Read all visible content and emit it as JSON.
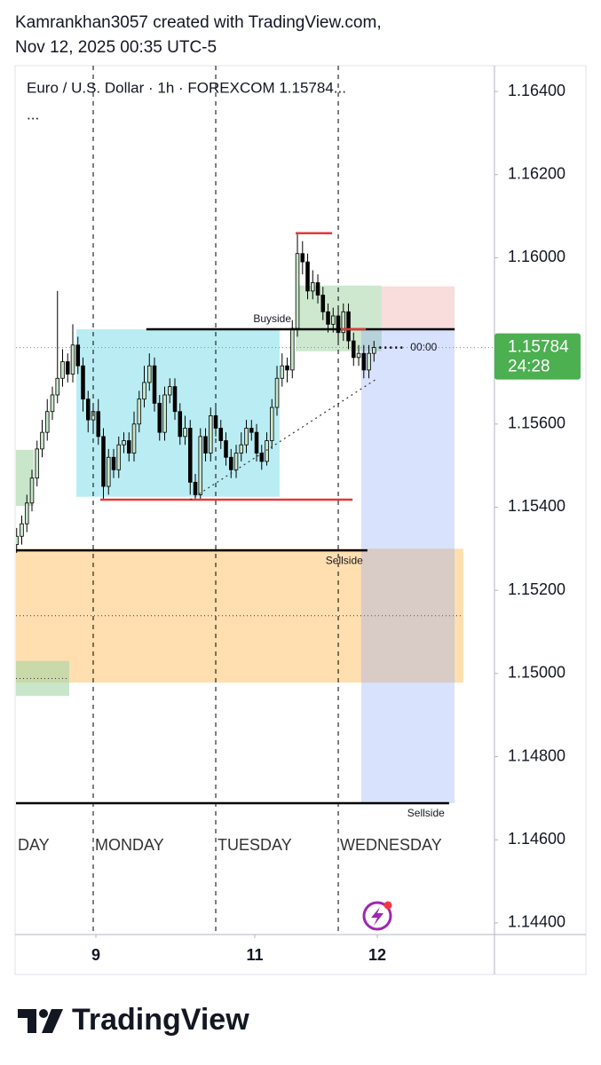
{
  "header": {
    "line1": "Kamrankhan3057 created with TradingView.com,",
    "line2": "Nov 12, 2025 00:35 UTC-5"
  },
  "chart_data": {
    "type": "candlestick",
    "legend_text": "Euro / U.S. Dollar · 1h · FOREXCOM  1.15784...",
    "legend_more": "...",
    "x": [
      -15,
      -14,
      -13,
      -12,
      -11,
      -10,
      -9,
      -8,
      -7,
      -6,
      -5,
      -4,
      -3,
      -2,
      -1,
      0,
      1,
      2,
      3,
      4,
      5,
      6,
      7,
      8,
      9,
      10,
      11,
      12,
      13,
      14,
      15,
      16,
      17,
      18,
      19,
      20,
      21,
      22,
      23,
      24,
      25,
      26,
      27,
      28,
      29,
      30,
      31,
      32,
      33,
      34,
      35,
      36,
      37,
      38,
      39,
      40,
      41,
      42,
      43,
      44,
      45,
      46,
      47,
      48,
      49,
      50,
      51,
      52,
      53,
      54,
      55
    ],
    "open": [
      1.1531,
      1.1533,
      1.1536,
      1.1541,
      1.1547,
      1.1554,
      1.1558,
      1.1563,
      1.1567,
      1.1571,
      1.1575,
      1.1572,
      1.1579,
      1.1574,
      1.1566,
      1.1561,
      1.1563,
      1.1557,
      1.1545,
      1.1552,
      1.1549,
      1.1555,
      1.1556,
      1.1553,
      1.156,
      1.1566,
      1.157,
      1.1574,
      1.1565,
      1.1558,
      1.1567,
      1.1569,
      1.1563,
      1.1557,
      1.1559,
      1.1546,
      1.1543,
      1.1557,
      1.1553,
      1.1562,
      1.1559,
      1.1556,
      1.1552,
      1.1549,
      1.1553,
      1.1555,
      1.1559,
      1.1558,
      1.1553,
      1.1551,
      1.1556,
      1.1564,
      1.1571,
      1.1574,
      1.1573,
      1.1583,
      1.1601,
      1.1599,
      1.1592,
      1.1594,
      1.1591,
      1.1587,
      1.1584,
      1.1586,
      1.1582,
      1.1587,
      1.158,
      1.1576,
      1.1577,
      1.1573,
      1.1577
    ],
    "high": [
      1.1535,
      1.1538,
      1.1543,
      1.1549,
      1.1556,
      1.1561,
      1.1566,
      1.1569,
      1.1592,
      1.1578,
      1.1577,
      1.1584,
      1.1581,
      1.1576,
      1.1568,
      1.1565,
      1.1566,
      1.1559,
      1.1554,
      1.1554,
      1.1557,
      1.1558,
      1.1558,
      1.1563,
      1.1568,
      1.1574,
      1.1577,
      1.1576,
      1.1567,
      1.1569,
      1.1571,
      1.1571,
      1.1565,
      1.1562,
      1.1561,
      1.1548,
      1.1559,
      1.1559,
      1.1564,
      1.1564,
      1.1561,
      1.1558,
      1.1554,
      1.1555,
      1.1558,
      1.1561,
      1.1561,
      1.156,
      1.1555,
      1.1558,
      1.1566,
      1.1574,
      1.1577,
      1.1576,
      1.1585,
      1.1606,
      1.1604,
      1.1601,
      1.1597,
      1.1596,
      1.1593,
      1.1589,
      1.1588,
      1.1588,
      1.1589,
      1.1589,
      1.1582,
      1.1579,
      1.1579,
      1.1579,
      1.158
    ],
    "low": [
      1.1529,
      1.1531,
      1.1534,
      1.1539,
      1.1545,
      1.1552,
      1.1556,
      1.1561,
      1.1565,
      1.1569,
      1.157,
      1.157,
      1.1572,
      1.1563,
      1.1558,
      1.1558,
      1.1555,
      1.1542,
      1.1543,
      1.1547,
      1.1547,
      1.1553,
      1.1551,
      1.1551,
      1.1558,
      1.1564,
      1.1568,
      1.1563,
      1.1556,
      1.1556,
      1.1565,
      1.1561,
      1.1555,
      1.1555,
      1.1543,
      1.1542,
      1.1542,
      1.1551,
      1.1551,
      1.1557,
      1.1554,
      1.155,
      1.1547,
      1.1547,
      1.1551,
      1.1553,
      1.1556,
      1.1551,
      1.1549,
      1.155,
      1.1554,
      1.1562,
      1.1569,
      1.157,
      1.1571,
      1.1581,
      1.1596,
      1.159,
      1.159,
      1.1589,
      1.1585,
      1.1582,
      1.1582,
      1.158,
      1.158,
      1.1578,
      1.1574,
      1.1574,
      1.1571,
      1.1571,
      1.1575
    ],
    "close": [
      1.1533,
      1.1536,
      1.1541,
      1.1547,
      1.1554,
      1.1558,
      1.1563,
      1.1567,
      1.1571,
      1.1575,
      1.1572,
      1.1579,
      1.1574,
      1.1566,
      1.1561,
      1.1563,
      1.1557,
      1.1545,
      1.1552,
      1.1549,
      1.1555,
      1.1556,
      1.1553,
      1.156,
      1.1566,
      1.157,
      1.1574,
      1.1565,
      1.1558,
      1.1567,
      1.1569,
      1.1563,
      1.1557,
      1.1559,
      1.1546,
      1.1543,
      1.1557,
      1.1553,
      1.1562,
      1.1559,
      1.1556,
      1.1552,
      1.1549,
      1.1553,
      1.1555,
      1.1559,
      1.1558,
      1.1553,
      1.1551,
      1.1556,
      1.1564,
      1.1571,
      1.1574,
      1.1573,
      1.1583,
      1.1601,
      1.1599,
      1.1592,
      1.1594,
      1.1591,
      1.1587,
      1.1584,
      1.1586,
      1.1582,
      1.1587,
      1.158,
      1.1576,
      1.1577,
      1.1573,
      1.1577,
      1.15784
    ],
    "up_color": "#c8e6c9",
    "down_color": "#000000",
    "xlim": [
      -15.13,
      78.6
    ],
    "xticks": [
      {
        "value": 0.52,
        "label": "9"
      },
      {
        "value": 31.65,
        "label": "11"
      },
      {
        "value": 55.65,
        "label": "12"
      }
    ],
    "ylim": [
      1.14372,
      1.16462
    ],
    "yticks": [
      {
        "value": 1.164,
        "label": "1.16400"
      },
      {
        "value": 1.162,
        "label": "1.16200"
      },
      {
        "value": 1.16,
        "label": "1.16000"
      },
      {
        "value": 1.158,
        "label": "1.15800"
      },
      {
        "value": 1.156,
        "label": "1.15600"
      },
      {
        "value": 1.154,
        "label": "1.15400"
      },
      {
        "value": 1.152,
        "label": "1.15200"
      },
      {
        "value": 1.15,
        "label": "1.15000"
      },
      {
        "value": 1.148,
        "label": "1.14800"
      },
      {
        "value": 1.146,
        "label": "1.14600"
      },
      {
        "value": 1.144,
        "label": "1.14400"
      }
    ],
    "grid": false,
    "session_breaks": [
      0,
      24,
      48
    ],
    "day_labels": [
      {
        "x": -15.13,
        "label": "DAY"
      },
      {
        "x": 0,
        "label": "MONDAY"
      },
      {
        "x": 24,
        "label": "TUESDAY"
      },
      {
        "x": 48,
        "label": "WEDNESDAY"
      }
    ],
    "zones": [
      {
        "x": [
          -3.3,
          36.5
        ],
        "y": [
          1.15425,
          1.15828
        ],
        "color": "rgba(128,222,234,0.55)",
        "midline": false
      },
      {
        "x": [
          -15.13,
          72.5
        ],
        "y": [
          1.14978,
          1.153
        ],
        "color": "rgba(255,183,77,0.45)",
        "midline": true
      },
      {
        "x": [
          -15.13,
          -11.65
        ],
        "y": [
          1.15403,
          1.15538
        ],
        "color": "rgba(165,214,167,0.6)",
        "midline": false
      },
      {
        "x": [
          -15.13,
          -4.7
        ],
        "y": [
          1.14946,
          1.1503
        ],
        "color": "rgba(165,214,167,0.6)",
        "midline": true
      },
      {
        "x": [
          39.65,
          56.5
        ],
        "y": [
          1.15775,
          1.15933
        ],
        "color": "rgba(165,214,167,0.55)",
        "midline": false
      },
      {
        "x": [
          56.5,
          70.8
        ],
        "y": [
          1.15828,
          1.15931
        ],
        "color": "rgba(239,154,154,0.35)",
        "midline": false
      },
      {
        "x": [
          52.5,
          70.8
        ],
        "y": [
          1.14688,
          1.15828
        ],
        "color": "rgba(130,160,250,0.3)",
        "midline": false
      }
    ],
    "levels": [
      {
        "x": [
          10.4,
          39.65
        ],
        "y": [
          1.15828,
          1.15828
        ],
        "color": "#000000",
        "dash": "solid",
        "label": "Buyside",
        "label_pos": "above"
      },
      {
        "x": [
          39.65,
          70.8
        ],
        "y": [
          1.15828,
          1.15828
        ],
        "color": "#000000",
        "dash": "solid"
      },
      {
        "x": [
          48.5,
          53.4
        ],
        "y": [
          1.15828,
          1.15828
        ],
        "color": "#e53935",
        "dash": "solid"
      },
      {
        "x": [
          1.4,
          50.8
        ],
        "y": [
          1.15418,
          1.15418
        ],
        "color": "#e53935",
        "dash": "solid"
      },
      {
        "x": [
          39.65,
          46.8
        ],
        "y": [
          1.16059,
          1.16059
        ],
        "color": "#e53935",
        "dash": "solid"
      },
      {
        "x": [
          -15.13,
          53.7
        ],
        "y": [
          1.15296,
          1.15296
        ],
        "color": "#000000",
        "dash": "solid",
        "label": "Sellside",
        "label_pos": "below"
      },
      {
        "x": [
          -15.13,
          69.7
        ],
        "y": [
          1.14688,
          1.14688
        ],
        "color": "#000000",
        "dash": "solid",
        "label": "Sellside",
        "label_pos": "below"
      },
      {
        "x": [
          19,
          55.2
        ],
        "y": [
          1.15418,
          1.15706
        ],
        "color": "#333333",
        "dash": "dot"
      }
    ],
    "last_price": 1.15784,
    "countdown": "24:28",
    "bar_close_label": "00:00",
    "price_color": "#4caf50"
  },
  "footer": {
    "brand": "TradingView"
  }
}
